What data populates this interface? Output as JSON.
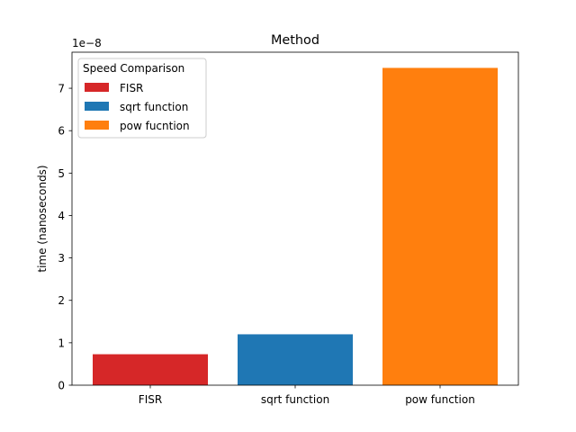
{
  "chart_data": {
    "type": "bar",
    "title": "Method",
    "xlabel": "",
    "ylabel": "time (nanoseconds)",
    "y_offset_label": "1e−8",
    "y_scale_exponent": -8,
    "categories": [
      "FISR",
      "sqrt function",
      "pow function"
    ],
    "values": [
      7.3e-09,
      1.2e-08,
      7.48e-08
    ],
    "colors": [
      "#d62728",
      "#1f77b4",
      "#ff7f0e"
    ],
    "ylim": [
      0,
      7.85e-08
    ],
    "yticks": [
      0,
      1,
      2,
      3,
      4,
      5,
      6,
      7
    ],
    "grid": false,
    "legend": {
      "title": "Speed Comparison",
      "placement": "top-left",
      "entries": [
        {
          "label": "FISR",
          "color": "#d62728"
        },
        {
          "label": "sqrt function",
          "color": "#1f77b4"
        },
        {
          "label": "pow fucntion",
          "color": "#ff7f0e"
        }
      ]
    }
  }
}
